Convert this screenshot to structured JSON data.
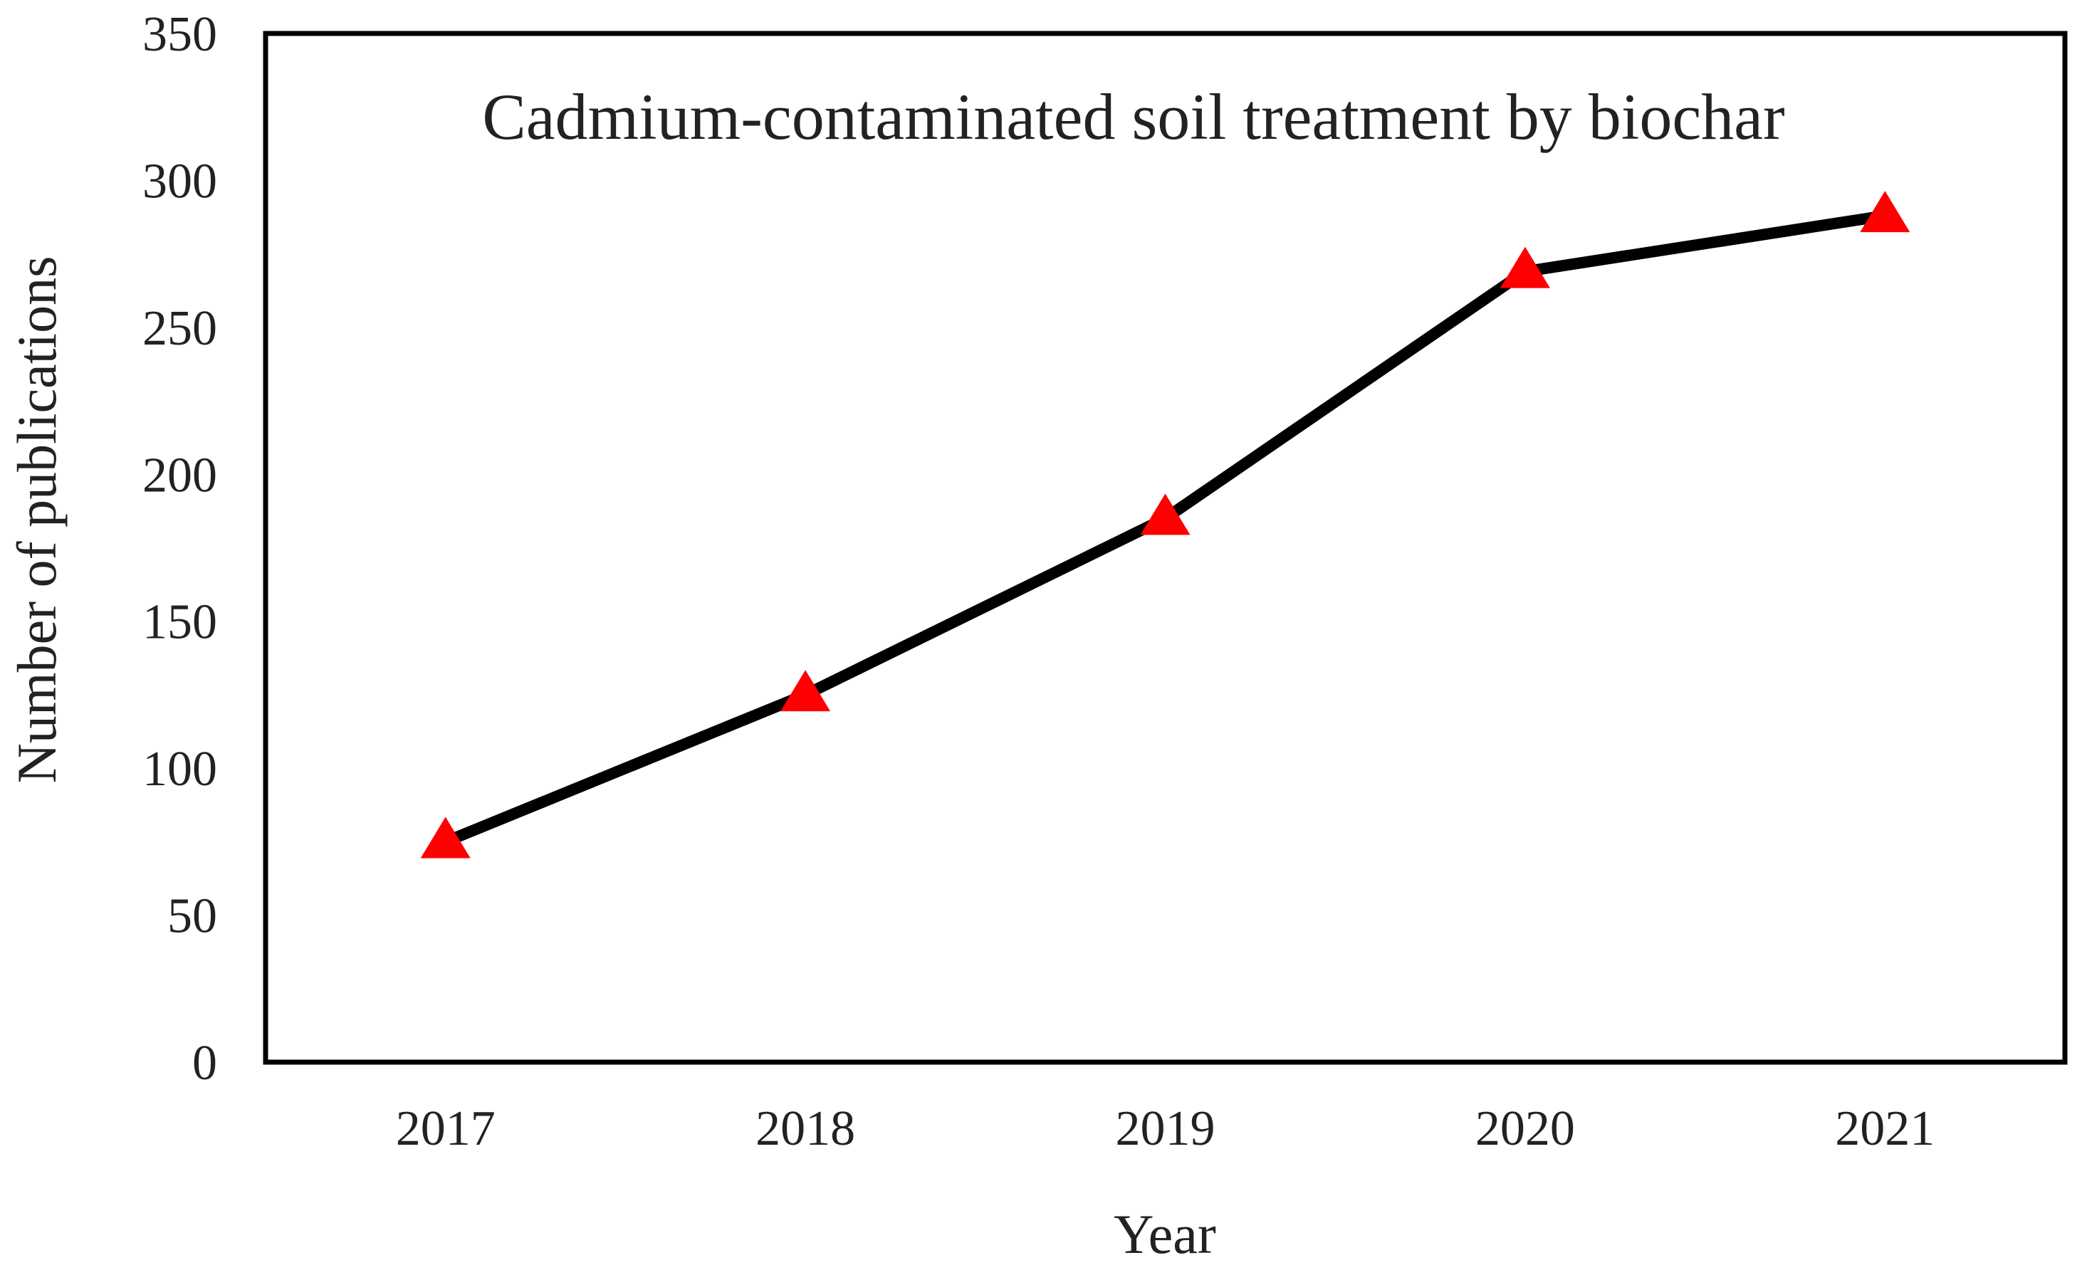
{
  "chart_data": {
    "type": "line",
    "title": "Cadmium-contaminated soil treatment by biochar",
    "xlabel": "Year",
    "ylabel": "Number of publications",
    "categories": [
      "2017",
      "2018",
      "2019",
      "2020",
      "2021"
    ],
    "series": [
      {
        "values": [
          75,
          125,
          185,
          269,
          288
        ],
        "line_color": "#000000",
        "marker": "triangle",
        "marker_color": "#ff0000"
      }
    ],
    "ylim": [
      0,
      350
    ],
    "yticks": [
      "0",
      "50",
      "100",
      "150",
      "200",
      "250",
      "300",
      "350"
    ],
    "grid": false,
    "legend": "none"
  }
}
